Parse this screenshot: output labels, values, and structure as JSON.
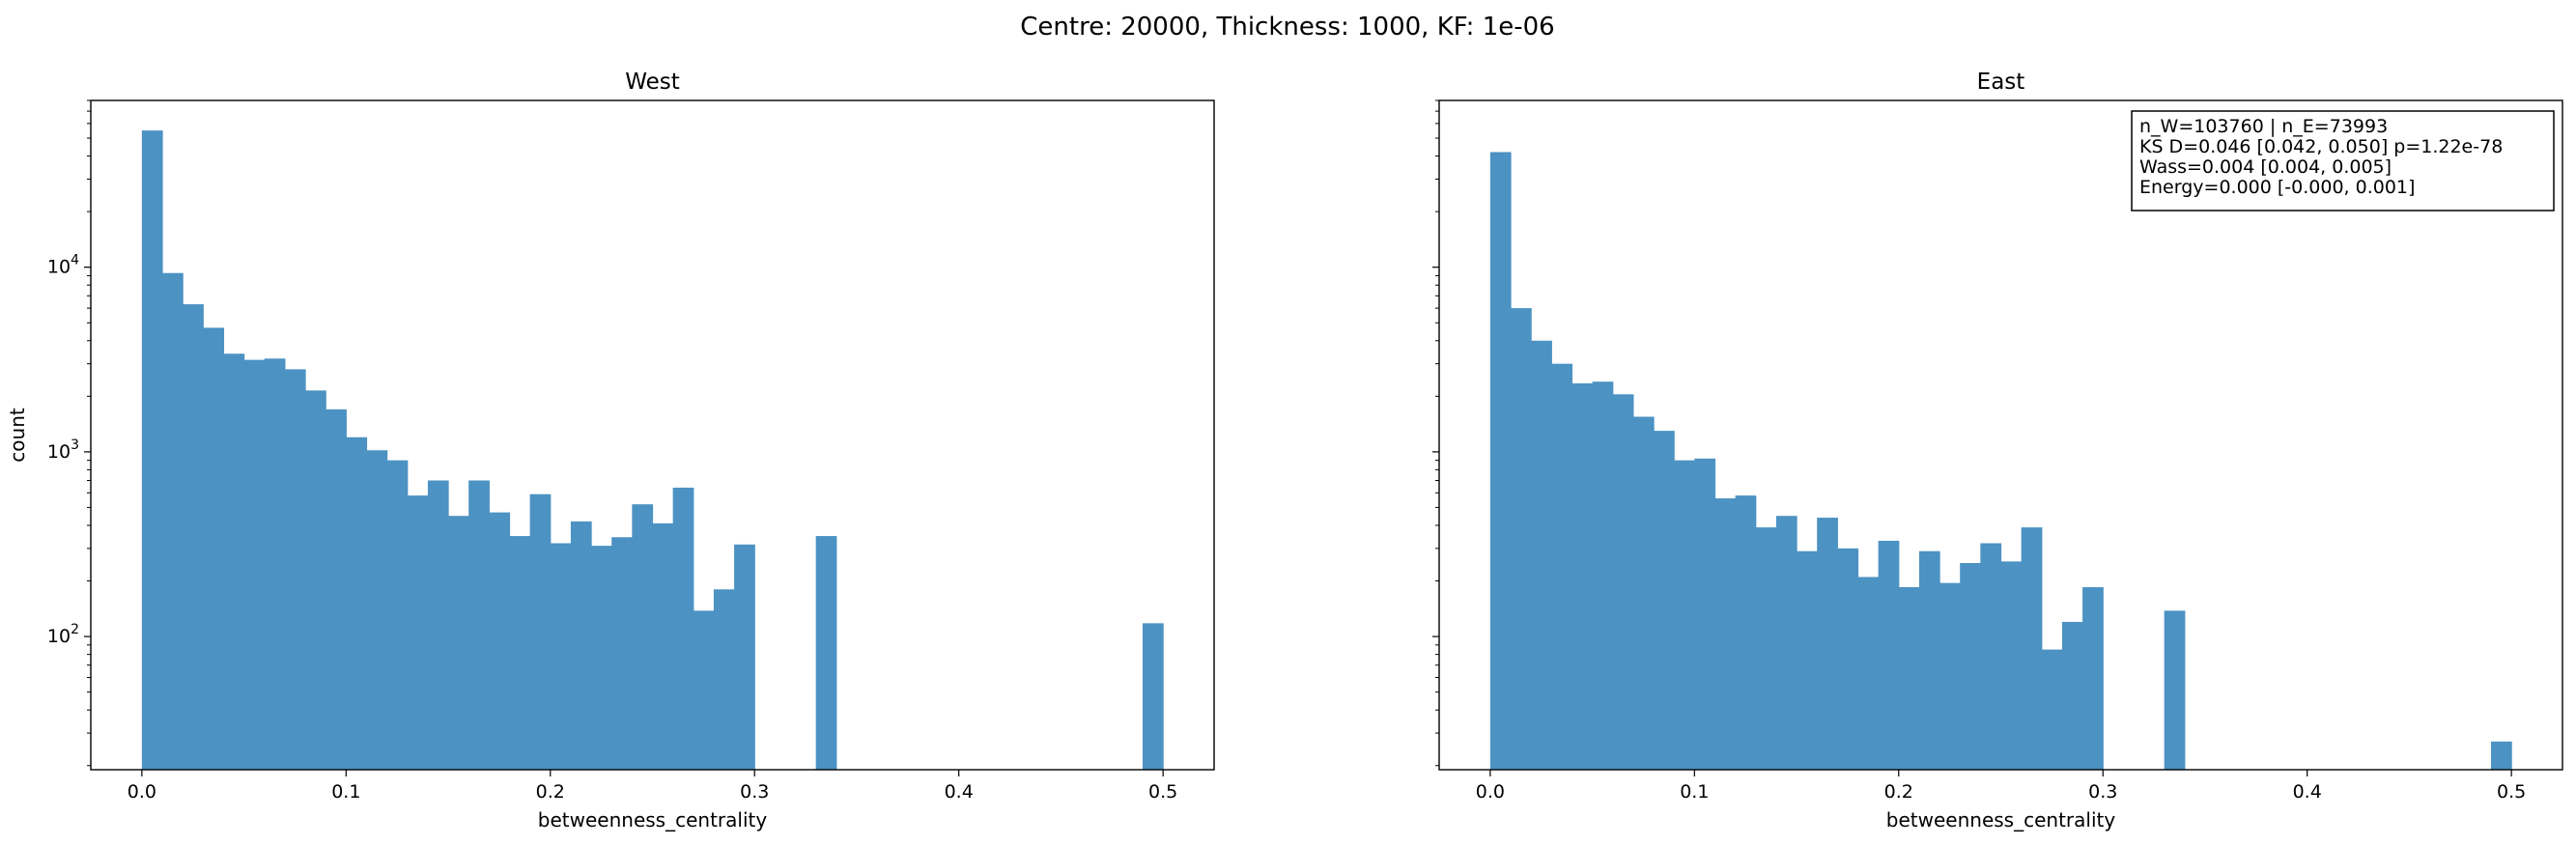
{
  "suptitle": "Centre: 20000, Thickness: 1000, KF: 1e-06",
  "chart_data": [
    {
      "type": "bar",
      "title": "West",
      "xlabel": "betweenness_centrality",
      "ylabel": "count",
      "yscale": "log",
      "xlim": [
        -0.025,
        0.525
      ],
      "ylim": [
        19,
        80000
      ],
      "x_ticks": [
        "0.0",
        "0.1",
        "0.2",
        "0.3",
        "0.4",
        "0.5"
      ],
      "y_ticks": [
        {
          "value": 100,
          "base": "10",
          "exp": "2"
        },
        {
          "value": 1000,
          "base": "10",
          "exp": "3"
        },
        {
          "value": 10000,
          "base": "10",
          "exp": "4"
        }
      ],
      "bin_start": 0.0,
      "bin_width": 0.01,
      "values": [
        55000,
        9300,
        6300,
        4700,
        3400,
        3150,
        3200,
        2800,
        2150,
        1700,
        1200,
        1020,
        900,
        580,
        700,
        450,
        700,
        470,
        350,
        590,
        320,
        420,
        310,
        345,
        520,
        410,
        640,
        138,
        180,
        315,
        0,
        0,
        0,
        350,
        0,
        0,
        0,
        0,
        0,
        0,
        0,
        0,
        0,
        0,
        0,
        0,
        0,
        0,
        0,
        118
      ],
      "color": "#4c92c3",
      "legend_text": []
    },
    {
      "type": "bar",
      "title": "East",
      "xlabel": "betweenness_centrality",
      "ylabel": "",
      "yscale": "log",
      "xlim": [
        -0.025,
        0.525
      ],
      "ylim": [
        19,
        80000
      ],
      "x_ticks": [
        "0.0",
        "0.1",
        "0.2",
        "0.3",
        "0.4",
        "0.5"
      ],
      "y_ticks": [],
      "bin_start": 0.0,
      "bin_width": 0.01,
      "values": [
        42000,
        6000,
        4000,
        3000,
        2350,
        2400,
        2050,
        1550,
        1300,
        900,
        920,
        560,
        580,
        390,
        450,
        290,
        440,
        300,
        210,
        330,
        185,
        290,
        195,
        250,
        320,
        255,
        390,
        85,
        120,
        185,
        0,
        0,
        0,
        138,
        0,
        0,
        0,
        0,
        0,
        0,
        0,
        0,
        0,
        0,
        0,
        0,
        0,
        0,
        0,
        27
      ],
      "color": "#4c92c3",
      "legend_text": [
        "n_W=103760 | n_E=73993",
        "KS D=0.046 [0.042, 0.050]  p=1.22e-78",
        "Wass=0.004 [0.004, 0.005]",
        "Energy=0.000 [-0.000, 0.001]"
      ]
    }
  ]
}
